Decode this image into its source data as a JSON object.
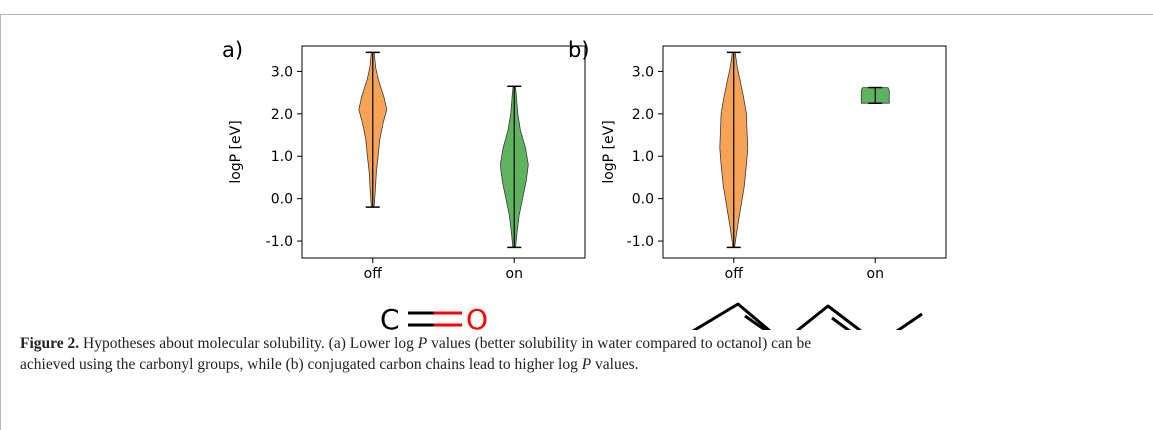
{
  "chart_data": [
    {
      "type": "violin",
      "panel_label": "a)",
      "ylabel": "logP [eV]",
      "ylim": [
        -1.4,
        3.6
      ],
      "yticks": [
        "-1.0",
        "0.0",
        "1.0",
        "2.0",
        "3.0"
      ],
      "categories": [
        "off",
        "on"
      ],
      "series": [
        {
          "category": "off",
          "color": "#f7a355",
          "min": -0.2,
          "max": 3.45,
          "density": [
            [
              -0.2,
              0.1
            ],
            [
              0.2,
              0.18
            ],
            [
              0.6,
              0.25
            ],
            [
              1.0,
              0.38
            ],
            [
              1.4,
              0.5
            ],
            [
              1.8,
              0.75
            ],
            [
              2.1,
              1.0
            ],
            [
              2.4,
              0.8
            ],
            [
              2.8,
              0.4
            ],
            [
              3.1,
              0.2
            ],
            [
              3.45,
              0.1
            ]
          ]
        },
        {
          "category": "on",
          "color": "#5fb35f",
          "min": -1.15,
          "max": 2.65,
          "density": [
            [
              -1.15,
              0.1
            ],
            [
              -0.8,
              0.2
            ],
            [
              -0.4,
              0.35
            ],
            [
              0.0,
              0.6
            ],
            [
              0.4,
              0.85
            ],
            [
              0.8,
              1.0
            ],
            [
              1.2,
              0.8
            ],
            [
              1.6,
              0.45
            ],
            [
              2.0,
              0.25
            ],
            [
              2.4,
              0.15
            ],
            [
              2.65,
              0.08
            ]
          ]
        }
      ],
      "molecule": {
        "left_atom": "C",
        "right_atom": "O",
        "bond": "double",
        "left_color": "#000000",
        "right_color": "#ff0000"
      }
    },
    {
      "type": "violin",
      "panel_label": "b)",
      "ylabel": "logP [eV]",
      "ylim": [
        -1.4,
        3.6
      ],
      "yticks": [
        "-1.0",
        "0.0",
        "1.0",
        "2.0",
        "3.0"
      ],
      "categories": [
        "off",
        "on"
      ],
      "series": [
        {
          "category": "off",
          "color": "#f7a355",
          "min": -1.15,
          "max": 3.45,
          "density": [
            [
              -1.15,
              0.05
            ],
            [
              -0.7,
              0.25
            ],
            [
              -0.2,
              0.5
            ],
            [
              0.3,
              0.75
            ],
            [
              0.8,
              0.9
            ],
            [
              1.2,
              1.0
            ],
            [
              1.6,
              0.95
            ],
            [
              2.0,
              0.9
            ],
            [
              2.4,
              0.7
            ],
            [
              2.8,
              0.45
            ],
            [
              3.1,
              0.25
            ],
            [
              3.45,
              0.1
            ]
          ]
        },
        {
          "category": "on",
          "color": "#5fb35f",
          "min": 2.25,
          "max": 2.62,
          "density": [
            [
              2.25,
              1.0
            ],
            [
              2.3,
              1.0
            ],
            [
              2.4,
              1.0
            ],
            [
              2.5,
              1.0
            ],
            [
              2.55,
              1.0
            ],
            [
              2.62,
              0.9
            ]
          ]
        }
      ],
      "molecule": {
        "type": "conjugated-carbon-chain"
      }
    }
  ],
  "caption": {
    "label": "Figure 2.",
    "line1": " Hypotheses about molecular solubility. (a) Lower log ",
    "P1": "P",
    "line1b": " values (better solubility in water compared to octanol) can be",
    "line2": "achieved using the carbonyl groups, while (b) conjugated carbon chains lead to higher log ",
    "P2": "P",
    "line2b": " values."
  }
}
